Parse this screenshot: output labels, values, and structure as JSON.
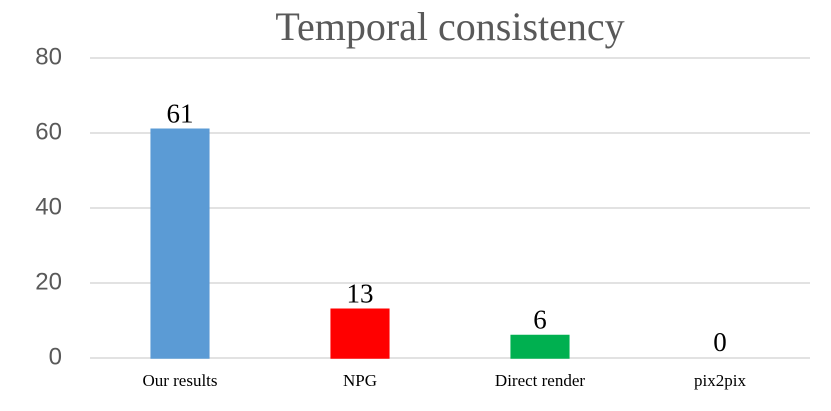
{
  "chart_data": {
    "type": "bar",
    "title": "Temporal consistency",
    "categories": [
      "Our results",
      "NPG",
      "Direct render",
      "pix2pix"
    ],
    "values": [
      61,
      13,
      6,
      0
    ],
    "colors": [
      "#5b9bd5",
      "#ff0000",
      "#00b050",
      "#ffc000"
    ],
    "ylim": [
      0,
      80
    ],
    "yticks": [
      0,
      20,
      40,
      60,
      80
    ],
    "grid": true,
    "data_labels": true
  }
}
